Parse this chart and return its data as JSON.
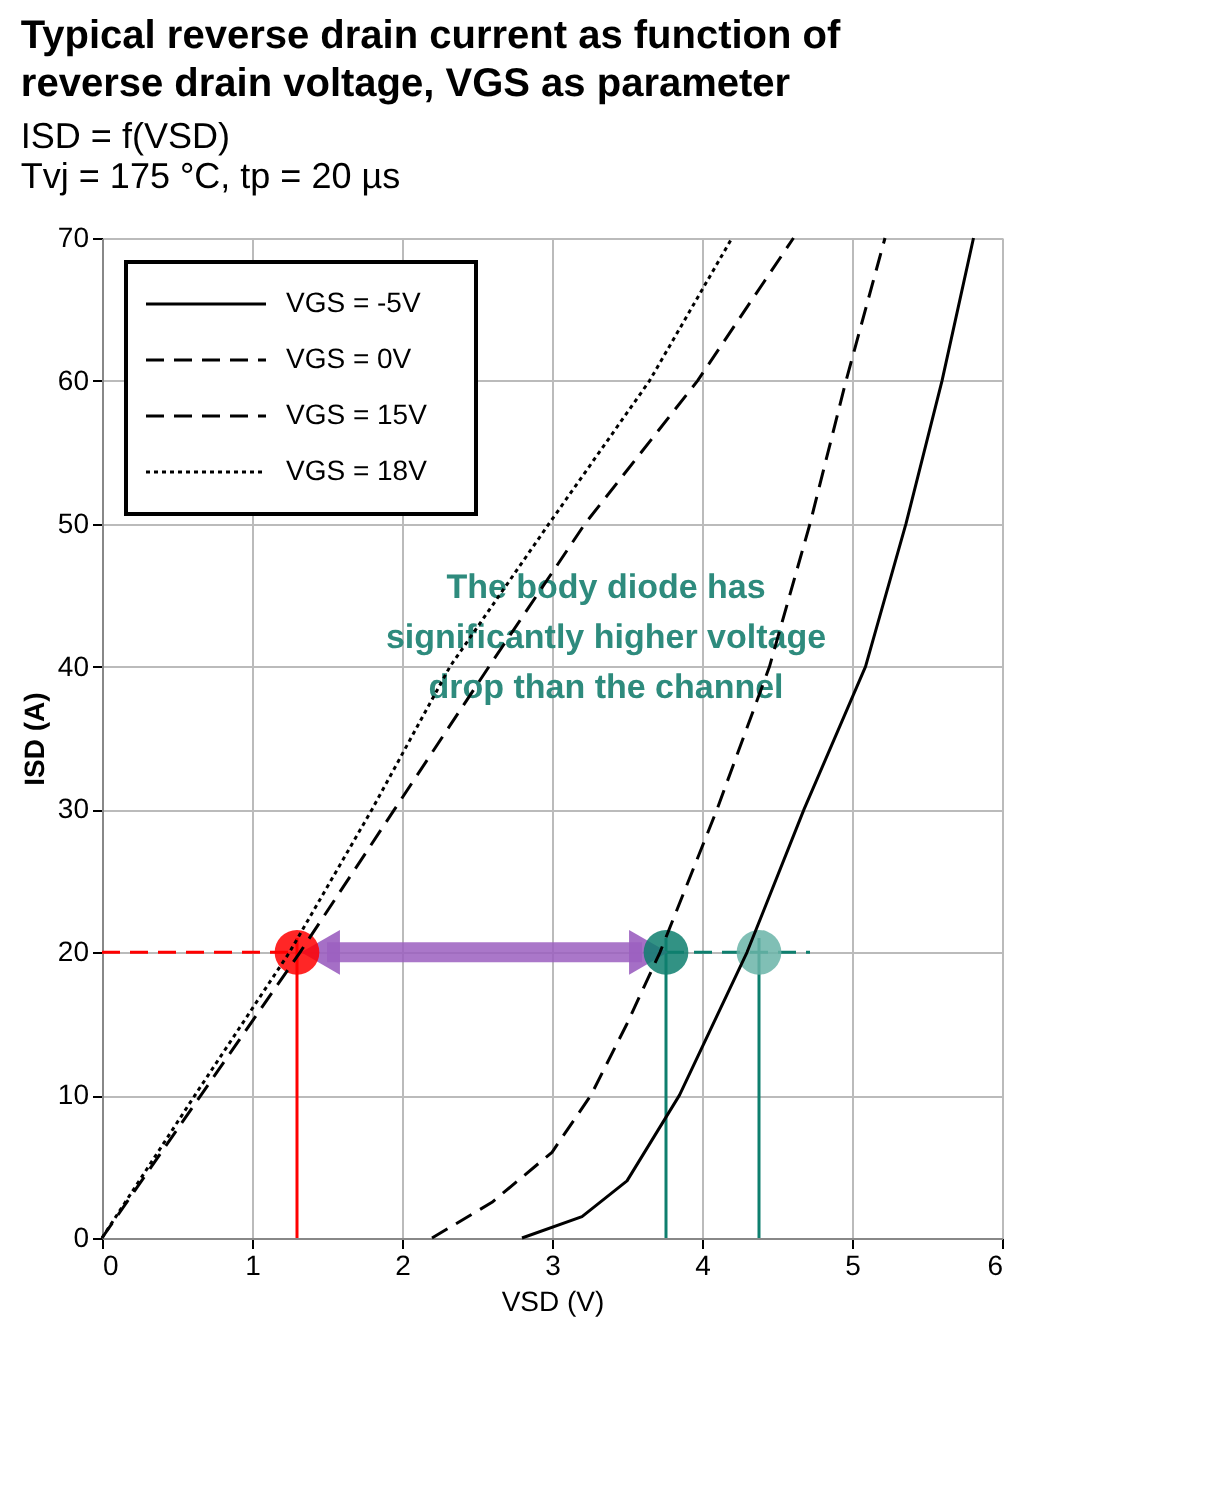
{
  "chart_data": {
    "type": "line",
    "title": "Typical reverse drain current as function of reverse drain voltage, VGS as parameter",
    "subtitle": [
      "ISD = f(VSD)",
      "Tvj = 175 °C, tp = 20 µs"
    ],
    "xlabel": "VSD (V)",
    "ylabel": "ISD (A)",
    "xlim": [
      0,
      6
    ],
    "xticks": [
      0,
      1,
      2,
      3,
      4,
      5,
      6
    ],
    "ylim": [
      0,
      70
    ],
    "yticks": [
      0,
      10,
      20,
      30,
      40,
      50,
      60,
      70
    ],
    "grid": true,
    "legend": "top left",
    "series": [
      {
        "name": "VGS = -5V",
        "color": "#000000",
        "line_style": "solid",
        "x": [
          2.8,
          3.2,
          3.5,
          3.85,
          4.3,
          4.68,
          5.09,
          5.36,
          5.6,
          5.81
        ],
        "values": [
          0,
          1.5,
          4,
          10,
          20,
          30,
          40,
          50,
          60,
          70
        ]
      },
      {
        "name": "VGS = 0V",
        "color": "#000000",
        "line_style": "dashed",
        "x": [
          2.2,
          2.6,
          3.0,
          3.26,
          3.5,
          3.72,
          4.1,
          4.45,
          4.72,
          4.96,
          5.22
        ],
        "values": [
          0,
          2.5,
          6,
          10,
          15,
          20,
          30,
          40,
          50,
          60,
          70
        ]
      },
      {
        "name": "VGS = 15V",
        "color": "#000000",
        "line_style": "dashed",
        "x": [
          0,
          0.66,
          1.32,
          1.95,
          2.58,
          3.22,
          3.97,
          4.61
        ],
        "values": [
          0,
          10,
          20,
          30,
          40,
          50,
          60,
          70
        ]
      },
      {
        "name": "VGS = 18V",
        "color": "#000000",
        "line_style": "dotted",
        "x": [
          0,
          0.62,
          1.25,
          1.8,
          2.32,
          2.98,
          3.65,
          4.2
        ],
        "values": [
          0,
          10,
          20,
          30,
          40,
          50,
          60,
          70
        ]
      },
      {
        "type": "line",
        "color": "#ff0000",
        "line_style": "dashed",
        "x": [
          0,
          1.3
        ],
        "values": [
          20,
          20
        ]
      },
      {
        "type": "line",
        "color": "#0e7f6e",
        "line_style": "dashed",
        "x": [
          3.76,
          4.72
        ],
        "values": [
          20,
          20
        ]
      },
      {
        "type": "line",
        "color": "#ff0000",
        "line_style": "solid",
        "x": [
          1.3,
          1.3
        ],
        "values": [
          0,
          21
        ]
      },
      {
        "type": "line",
        "color": "#0e7f6e",
        "line_style": "solid",
        "x": [
          3.76,
          3.76
        ],
        "values": [
          0,
          21
        ]
      },
      {
        "type": "line",
        "color": "#0e7f6e",
        "line_style": "solid",
        "x": [
          4.38,
          4.38
        ],
        "values": [
          0,
          21
        ]
      },
      {
        "type": "line",
        "color": "#9b5fc0",
        "line_style": "solid",
        "marker": "triangle",
        "x": [
          1.5,
          3.6
        ],
        "values": [
          20,
          20
        ]
      },
      {
        "type": "scatter",
        "colors": [
          "#ff0000",
          "#0e7f6e",
          "#6ab4a8"
        ],
        "x": [
          1.3,
          3.76,
          4.38
        ],
        "values": [
          20,
          20,
          20
        ]
      }
    ],
    "annotations": [
      "The body diode has significantly higher voltage drop than the channel"
    ]
  }
}
